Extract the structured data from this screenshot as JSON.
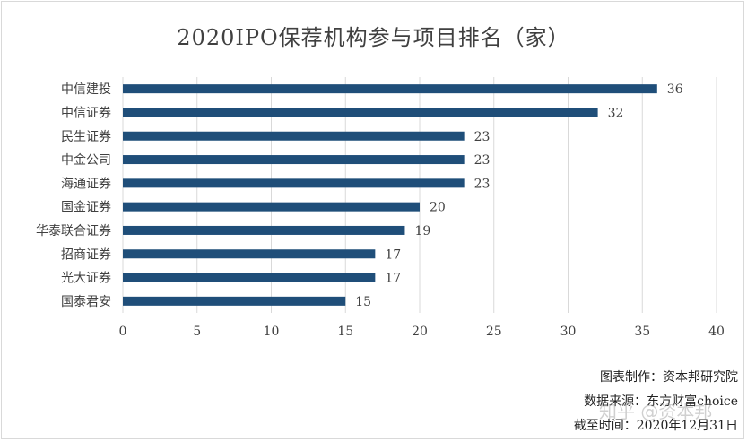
{
  "colors": {
    "bar": "#1f4e79",
    "grid": "#d9d9d9",
    "text": "#404040"
  },
  "chart_data": {
    "type": "bar",
    "orientation": "horizontal",
    "title": "2020IPO保荐机构参与项目排名（家）",
    "categories": [
      "中信建投",
      "中信证券",
      "民生证券",
      "中金公司",
      "海通证券",
      "国金证券",
      "华泰联合证券",
      "招商证券",
      "光大证券",
      "国泰君安"
    ],
    "values": [
      36,
      32,
      23,
      23,
      23,
      20,
      19,
      17,
      17,
      15
    ],
    "xlim": [
      0,
      40
    ],
    "xticks": [
      0,
      5,
      10,
      15,
      20,
      25,
      30,
      35,
      40
    ],
    "grid": true,
    "legend": "none"
  },
  "footnotes": {
    "maker": "图表制作：资本邦研究院",
    "source": "数据来源：东方财富choice",
    "cutoff": "截至时间：2020年12月31日"
  },
  "watermark": "知乎 @资本邦"
}
